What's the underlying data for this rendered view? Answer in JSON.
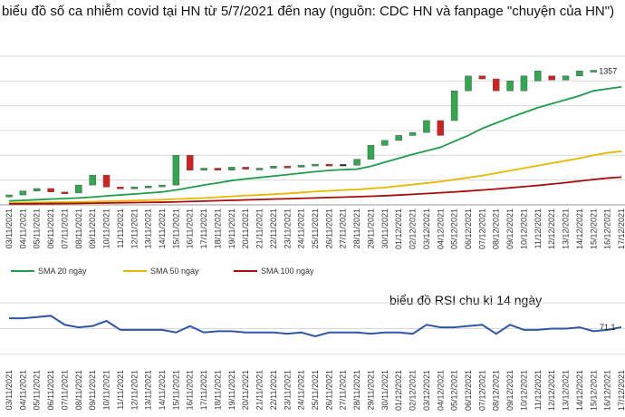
{
  "title": "biểu đồ số ca nhiễm covid tại HN từ 5/7/2021 đến nay (nguồn: CDC HN và fanpage \"chuyện của HN\")",
  "rsi_title": "biểu đồ RSI chu kì 14 ngày",
  "colors": {
    "up": "#2fa84f",
    "down": "#d62020",
    "doji": "#222222",
    "sma20": "#1e9e48",
    "sma50": "#e8b800",
    "sma100": "#a80d0d",
    "rsi": "#2f56a8",
    "grid": "#d9d9d9"
  },
  "chart_data": [
    {
      "type": "candlestick",
      "dates": [
        "03/11/2021",
        "04/11/2021",
        "05/11/2021",
        "06/11/2021",
        "07/11/2021",
        "08/11/2021",
        "09/11/2021",
        "10/11/2021",
        "11/11/2021",
        "12/11/2021",
        "13/11/2021",
        "14/11/2021",
        "15/11/2021",
        "16/11/2021",
        "17/11/2021",
        "18/11/2021",
        "19/11/2021",
        "20/11/2021",
        "21/11/2021",
        "22/11/2021",
        "23/11/2021",
        "24/11/2021",
        "25/11/2021",
        "26/11/2021",
        "27/11/2021",
        "28/11/2021",
        "29/11/2021",
        "30/11/2021",
        "01/12/2021",
        "02/12/2021",
        "03/12/2021",
        "04/12/2021",
        "05/12/2021",
        "06/12/2021",
        "07/12/2021",
        "08/12/2021",
        "09/12/2021",
        "10/12/2021",
        "11/12/2021",
        "12/12/2021",
        "13/12/2021",
        "14/12/2021",
        "15/12/2021",
        "16/12/2021",
        "17/12/2021"
      ],
      "open": [
        80,
        100,
        140,
        165,
        130,
        120,
        200,
        300,
        180,
        170,
        180,
        190,
        200,
        500,
        350,
        370,
        350,
        380,
        360,
        370,
        390,
        380,
        400,
        410,
        400,
        400,
        460,
        600,
        650,
        700,
        730,
        850,
        850,
        1150,
        1300,
        1270,
        1150,
        1150,
        1250,
        1300,
        1260,
        1300,
        1350,
        null,
        null
      ],
      "close": [
        100,
        140,
        165,
        130,
        120,
        200,
        300,
        180,
        170,
        180,
        190,
        200,
        500,
        350,
        370,
        350,
        380,
        360,
        370,
        390,
        380,
        400,
        410,
        400,
        400,
        460,
        600,
        650,
        700,
        730,
        850,
        700,
        1150,
        1300,
        1270,
        1150,
        1250,
        1300,
        1350,
        1260,
        1300,
        1350,
        1357,
        null,
        null
      ],
      "series": [
        {
          "name": "SMA 20 ngày",
          "values": [
            40,
            45,
            52,
            58,
            64,
            70,
            79,
            90,
            100,
            110,
            120,
            130,
            150,
            175,
            200,
            222,
            245,
            262,
            276,
            290,
            305,
            320,
            335,
            347,
            355,
            360,
            390,
            430,
            470,
            510,
            545,
            580,
            640,
            700,
            770,
            825,
            880,
            930,
            980,
            1020,
            1060,
            1100,
            1150,
            1170,
            1190
          ]
        },
        {
          "name": "SMA 50 ngày",
          "values": [
            20,
            22,
            24,
            26,
            28,
            30,
            33,
            36,
            40,
            44,
            48,
            52,
            58,
            64,
            70,
            78,
            86,
            94,
            100,
            107,
            115,
            125,
            135,
            142,
            150,
            155,
            165,
            175,
            190,
            205,
            220,
            235,
            255,
            275,
            295,
            320,
            345,
            370,
            395,
            420,
            445,
            470,
            500,
            525,
            540
          ]
        },
        {
          "name": "SMA 100 ngày",
          "values": [
            10,
            11,
            12,
            13,
            14,
            15,
            17,
            19,
            21,
            23,
            25,
            27,
            30,
            34,
            38,
            42,
            46,
            50,
            54,
            58,
            62,
            66,
            70,
            74,
            78,
            82,
            87,
            92,
            99,
            106,
            114,
            122,
            130,
            140,
            150,
            160,
            172,
            184,
            196,
            210,
            224,
            240,
            256,
            270,
            280
          ]
        }
      ],
      "data_labels": [
        {
          "index": 42,
          "text": "1357"
        }
      ],
      "xlabel": "",
      "ylabel": "",
      "ylim": [
        0,
        1700
      ],
      "grid": true,
      "legend": "bottom-left"
    },
    {
      "type": "line",
      "x": [
        "03/11/2021",
        "04/11/2021",
        "05/11/2021",
        "06/11/2021",
        "07/11/2021",
        "08/11/2021",
        "09/11/2021",
        "10/11/2021",
        "11/11/2021",
        "12/11/2021",
        "13/11/2021",
        "14/11/2021",
        "15/11/2021",
        "16/11/2021",
        "17/11/2021",
        "18/11/2021",
        "19/11/2021",
        "20/11/2021",
        "21/11/2021",
        "22/11/2021",
        "23/11/2021",
        "24/11/2021",
        "25/11/2021",
        "26/11/2021",
        "27/11/2021",
        "28/11/2021",
        "29/11/2021",
        "30/11/2021",
        "01/12/2021",
        "02/12/2021",
        "03/12/2021",
        "04/12/2021",
        "05/12/2021",
        "06/12/2021",
        "07/12/2021",
        "08/12/2021",
        "09/12/2021",
        "10/12/2021",
        "11/12/2021",
        "12/12/2021",
        "13/12/2021",
        "14/12/2021",
        "15/12/2021",
        "16/12/2021",
        "17/12/2021"
      ],
      "values": [
        78,
        78,
        79,
        80,
        73,
        71,
        72,
        76,
        69,
        69,
        69,
        69,
        67,
        72,
        67,
        68,
        68,
        67,
        67,
        67,
        66,
        67,
        64,
        67,
        67,
        67,
        66,
        67,
        67,
        66,
        73,
        71,
        71,
        72,
        73,
        66,
        73,
        69,
        69,
        70,
        70,
        71,
        68,
        69,
        71.1
      ],
      "data_labels": [
        {
          "index": 44,
          "text": "71,1"
        }
      ],
      "ylim": [
        40,
        100
      ],
      "grid": true
    }
  ]
}
